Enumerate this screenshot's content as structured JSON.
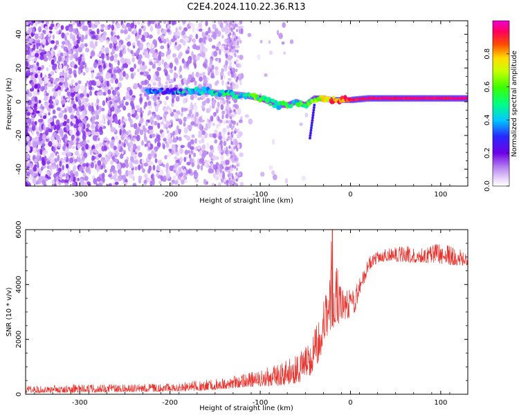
{
  "figure": {
    "title": "C2E4.2024.110.22.36.R13"
  },
  "chart_data": [
    {
      "type": "heatmap",
      "xlabel": "Height of straight line (km)",
      "ylabel": "Frequency (Hz)",
      "xlim": [
        -360,
        130
      ],
      "ylim": [
        -50,
        48
      ],
      "xticks": [
        -300,
        -200,
        -100,
        0,
        100
      ],
      "yticks": [
        -40,
        -20,
        0,
        20,
        40
      ],
      "grid": false,
      "colorbar": {
        "label": "Normalized spectral amplitude",
        "range": [
          0,
          1
        ],
        "ticks": [
          0.0,
          0.2,
          0.4,
          0.6,
          0.8
        ],
        "colormap": "gist_ncar-like (white, purple, blue, cyan, green, yellow, red, magenta)"
      },
      "ridge": {
        "description": "frequency of peak spectral amplitude vs height",
        "x": [
          -220,
          -200,
          -180,
          -160,
          -140,
          -120,
          -100,
          -90,
          -80,
          -70,
          -60,
          -50,
          -40,
          -30,
          -20,
          -10,
          0,
          20,
          50,
          100,
          130
        ],
        "y": [
          7,
          6,
          6,
          6,
          5,
          4,
          2,
          0,
          -2,
          -2,
          0,
          -2,
          2,
          2,
          1,
          1,
          1,
          2,
          2,
          2,
          2
        ],
        "amplitude": [
          0.3,
          0.35,
          0.4,
          0.4,
          0.45,
          0.45,
          0.55,
          0.5,
          0.5,
          0.5,
          0.5,
          0.55,
          0.6,
          0.75,
          0.85,
          0.85,
          0.9,
          0.95,
          0.95,
          0.95,
          0.95
        ]
      },
      "noise_region": {
        "x_range": [
          -360,
          -120
        ],
        "y_range": [
          -50,
          48
        ],
        "amplitude": [
          0.05,
          0.2
        ]
      }
    },
    {
      "type": "line",
      "xlabel": "Height of straight line (km)",
      "ylabel": "SNR (10 * v/v)",
      "xlim": [
        -360,
        130
      ],
      "ylim": [
        0,
        6000
      ],
      "xticks": [
        -300,
        -200,
        -100,
        0,
        100
      ],
      "yticks": [
        0,
        2000,
        4000,
        6000
      ],
      "grid": false,
      "color": "#e8322c",
      "envelope": {
        "x": [
          -360,
          -300,
          -250,
          -200,
          -150,
          -120,
          -100,
          -80,
          -60,
          -50,
          -40,
          -35,
          -30,
          -25,
          -20,
          -15,
          -10,
          -5,
          0,
          5,
          10,
          15,
          20,
          30,
          40,
          60,
          80,
          100,
          120,
          130
        ],
        "low": [
          50,
          60,
          80,
          100,
          150,
          250,
          280,
          300,
          400,
          500,
          800,
          1200,
          1700,
          2200,
          2400,
          2500,
          2700,
          2700,
          2800,
          3000,
          3600,
          4000,
          4500,
          4800,
          4850,
          4800,
          4800,
          4750,
          4700,
          4700
        ],
        "high": [
          300,
          350,
          350,
          400,
          550,
          700,
          900,
          1100,
          1400,
          1700,
          2300,
          2800,
          3500,
          4200,
          6000,
          4600,
          4200,
          3900,
          3800,
          3800,
          4300,
          4600,
          5000,
          5200,
          5300,
          5400,
          5350,
          5500,
          5300,
          5100
        ]
      },
      "peak": {
        "x": -20,
        "y": 6000
      }
    }
  ]
}
